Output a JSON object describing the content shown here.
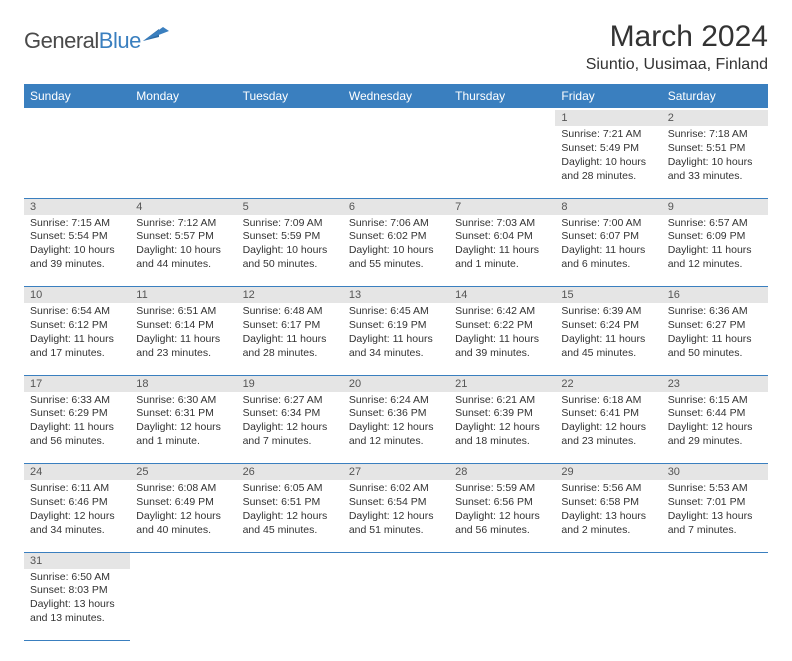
{
  "logo": {
    "part1": "General",
    "part2": "Blue"
  },
  "title": "March 2024",
  "location": "Siuntio, Uusimaa, Finland",
  "colors": {
    "header_bg": "#3a7fbf",
    "header_text": "#ffffff",
    "daynum_bg": "#e5e5e5",
    "border": "#3a7fbf",
    "text": "#333333"
  },
  "weekdays": [
    "Sunday",
    "Monday",
    "Tuesday",
    "Wednesday",
    "Thursday",
    "Friday",
    "Saturday"
  ],
  "weeks": [
    {
      "nums": [
        "",
        "",
        "",
        "",
        "",
        "1",
        "2"
      ],
      "cells": [
        null,
        null,
        null,
        null,
        null,
        {
          "sunrise": "Sunrise: 7:21 AM",
          "sunset": "Sunset: 5:49 PM",
          "daylight": "Daylight: 10 hours and 28 minutes."
        },
        {
          "sunrise": "Sunrise: 7:18 AM",
          "sunset": "Sunset: 5:51 PM",
          "daylight": "Daylight: 10 hours and 33 minutes."
        }
      ]
    },
    {
      "nums": [
        "3",
        "4",
        "5",
        "6",
        "7",
        "8",
        "9"
      ],
      "cells": [
        {
          "sunrise": "Sunrise: 7:15 AM",
          "sunset": "Sunset: 5:54 PM",
          "daylight": "Daylight: 10 hours and 39 minutes."
        },
        {
          "sunrise": "Sunrise: 7:12 AM",
          "sunset": "Sunset: 5:57 PM",
          "daylight": "Daylight: 10 hours and 44 minutes."
        },
        {
          "sunrise": "Sunrise: 7:09 AM",
          "sunset": "Sunset: 5:59 PM",
          "daylight": "Daylight: 10 hours and 50 minutes."
        },
        {
          "sunrise": "Sunrise: 7:06 AM",
          "sunset": "Sunset: 6:02 PM",
          "daylight": "Daylight: 10 hours and 55 minutes."
        },
        {
          "sunrise": "Sunrise: 7:03 AM",
          "sunset": "Sunset: 6:04 PM",
          "daylight": "Daylight: 11 hours and 1 minute."
        },
        {
          "sunrise": "Sunrise: 7:00 AM",
          "sunset": "Sunset: 6:07 PM",
          "daylight": "Daylight: 11 hours and 6 minutes."
        },
        {
          "sunrise": "Sunrise: 6:57 AM",
          "sunset": "Sunset: 6:09 PM",
          "daylight": "Daylight: 11 hours and 12 minutes."
        }
      ]
    },
    {
      "nums": [
        "10",
        "11",
        "12",
        "13",
        "14",
        "15",
        "16"
      ],
      "cells": [
        {
          "sunrise": "Sunrise: 6:54 AM",
          "sunset": "Sunset: 6:12 PM",
          "daylight": "Daylight: 11 hours and 17 minutes."
        },
        {
          "sunrise": "Sunrise: 6:51 AM",
          "sunset": "Sunset: 6:14 PM",
          "daylight": "Daylight: 11 hours and 23 minutes."
        },
        {
          "sunrise": "Sunrise: 6:48 AM",
          "sunset": "Sunset: 6:17 PM",
          "daylight": "Daylight: 11 hours and 28 minutes."
        },
        {
          "sunrise": "Sunrise: 6:45 AM",
          "sunset": "Sunset: 6:19 PM",
          "daylight": "Daylight: 11 hours and 34 minutes."
        },
        {
          "sunrise": "Sunrise: 6:42 AM",
          "sunset": "Sunset: 6:22 PM",
          "daylight": "Daylight: 11 hours and 39 minutes."
        },
        {
          "sunrise": "Sunrise: 6:39 AM",
          "sunset": "Sunset: 6:24 PM",
          "daylight": "Daylight: 11 hours and 45 minutes."
        },
        {
          "sunrise": "Sunrise: 6:36 AM",
          "sunset": "Sunset: 6:27 PM",
          "daylight": "Daylight: 11 hours and 50 minutes."
        }
      ]
    },
    {
      "nums": [
        "17",
        "18",
        "19",
        "20",
        "21",
        "22",
        "23"
      ],
      "cells": [
        {
          "sunrise": "Sunrise: 6:33 AM",
          "sunset": "Sunset: 6:29 PM",
          "daylight": "Daylight: 11 hours and 56 minutes."
        },
        {
          "sunrise": "Sunrise: 6:30 AM",
          "sunset": "Sunset: 6:31 PM",
          "daylight": "Daylight: 12 hours and 1 minute."
        },
        {
          "sunrise": "Sunrise: 6:27 AM",
          "sunset": "Sunset: 6:34 PM",
          "daylight": "Daylight: 12 hours and 7 minutes."
        },
        {
          "sunrise": "Sunrise: 6:24 AM",
          "sunset": "Sunset: 6:36 PM",
          "daylight": "Daylight: 12 hours and 12 minutes."
        },
        {
          "sunrise": "Sunrise: 6:21 AM",
          "sunset": "Sunset: 6:39 PM",
          "daylight": "Daylight: 12 hours and 18 minutes."
        },
        {
          "sunrise": "Sunrise: 6:18 AM",
          "sunset": "Sunset: 6:41 PM",
          "daylight": "Daylight: 12 hours and 23 minutes."
        },
        {
          "sunrise": "Sunrise: 6:15 AM",
          "sunset": "Sunset: 6:44 PM",
          "daylight": "Daylight: 12 hours and 29 minutes."
        }
      ]
    },
    {
      "nums": [
        "24",
        "25",
        "26",
        "27",
        "28",
        "29",
        "30"
      ],
      "cells": [
        {
          "sunrise": "Sunrise: 6:11 AM",
          "sunset": "Sunset: 6:46 PM",
          "daylight": "Daylight: 12 hours and 34 minutes."
        },
        {
          "sunrise": "Sunrise: 6:08 AM",
          "sunset": "Sunset: 6:49 PM",
          "daylight": "Daylight: 12 hours and 40 minutes."
        },
        {
          "sunrise": "Sunrise: 6:05 AM",
          "sunset": "Sunset: 6:51 PM",
          "daylight": "Daylight: 12 hours and 45 minutes."
        },
        {
          "sunrise": "Sunrise: 6:02 AM",
          "sunset": "Sunset: 6:54 PM",
          "daylight": "Daylight: 12 hours and 51 minutes."
        },
        {
          "sunrise": "Sunrise: 5:59 AM",
          "sunset": "Sunset: 6:56 PM",
          "daylight": "Daylight: 12 hours and 56 minutes."
        },
        {
          "sunrise": "Sunrise: 5:56 AM",
          "sunset": "Sunset: 6:58 PM",
          "daylight": "Daylight: 13 hours and 2 minutes."
        },
        {
          "sunrise": "Sunrise: 5:53 AM",
          "sunset": "Sunset: 7:01 PM",
          "daylight": "Daylight: 13 hours and 7 minutes."
        }
      ]
    },
    {
      "nums": [
        "31",
        "",
        "",
        "",
        "",
        "",
        ""
      ],
      "cells": [
        {
          "sunrise": "Sunrise: 6:50 AM",
          "sunset": "Sunset: 8:03 PM",
          "daylight": "Daylight: 13 hours and 13 minutes."
        },
        null,
        null,
        null,
        null,
        null,
        null
      ]
    }
  ]
}
